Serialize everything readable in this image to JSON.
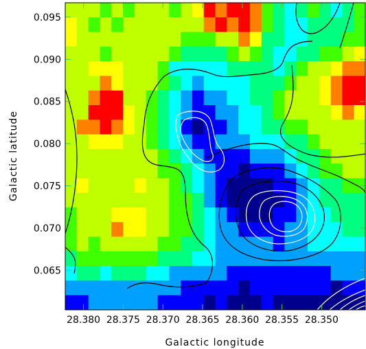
{
  "chart_data": {
    "type": "heatmap",
    "title": "",
    "xlabel": "Galactic longitude",
    "ylabel": "Galactic latitude",
    "x_reversed": true,
    "xlim": [
      28.3823,
      28.3445
    ],
    "ylim": [
      0.0603,
      0.0967
    ],
    "xticks": [
      "28.380",
      "28.375",
      "28.370",
      "28.365",
      "28.360",
      "28.355",
      "28.350"
    ],
    "yticks": [
      "0.095",
      "0.090",
      "0.085",
      "0.080",
      "0.075",
      "0.070",
      "0.065"
    ],
    "grid": false,
    "legend": "none",
    "colormap": [
      "#00008c",
      "#0000ff",
      "#00a0ff",
      "#00ffff",
      "#00ff80",
      "#40ff00",
      "#c0ff00",
      "#ffff00",
      "#ff8000",
      "#ff0000"
    ],
    "contour_levels": [
      "outer",
      "mid",
      "inner-1",
      "inner-2",
      "inner-3",
      "peak"
    ],
    "intensity_grid": [
      [
        6,
        6,
        6,
        5,
        6,
        5,
        6,
        6,
        6,
        5,
        6,
        7,
        9,
        8,
        9,
        9,
        8,
        5,
        4,
        3,
        4,
        5,
        4,
        3,
        4,
        5
      ],
      [
        7,
        6,
        5,
        6,
        5,
        6,
        6,
        6,
        6,
        6,
        6,
        6,
        8,
        9,
        8,
        9,
        8,
        5,
        4,
        3,
        3,
        4,
        4,
        4,
        4,
        5
      ],
      [
        7,
        6,
        6,
        6,
        6,
        6,
        6,
        6,
        6,
        6,
        5,
        5,
        5,
        6,
        6,
        8,
        7,
        4,
        4,
        3,
        3,
        4,
        4,
        4,
        5,
        5
      ],
      [
        6,
        6,
        6,
        5,
        6,
        6,
        6,
        6,
        6,
        5,
        4,
        4,
        4,
        4,
        5,
        6,
        5,
        4,
        3,
        3,
        4,
        4,
        5,
        5,
        6,
        7
      ],
      [
        6,
        6,
        7,
        7,
        7,
        6,
        6,
        6,
        5,
        3,
        3,
        3,
        3,
        3,
        4,
        4,
        4,
        4,
        3,
        4,
        5,
        6,
        6,
        7,
        8,
        8
      ],
      [
        6,
        6,
        6,
        8,
        7,
        6,
        6,
        6,
        5,
        4,
        3,
        2,
        3,
        3,
        3,
        3,
        4,
        4,
        4,
        5,
        6,
        6,
        7,
        8,
        9,
        9
      ],
      [
        6,
        6,
        8,
        9,
        9,
        6,
        6,
        5,
        4,
        3,
        2,
        1,
        2,
        2,
        3,
        3,
        4,
        4,
        5,
        6,
        6,
        6,
        7,
        8,
        9,
        9
      ],
      [
        6,
        6,
        9,
        9,
        9,
        7,
        6,
        5,
        4,
        3,
        2,
        1,
        1,
        2,
        2,
        3,
        3,
        4,
        5,
        6,
        6,
        6,
        6,
        7,
        8,
        7
      ],
      [
        6,
        8,
        8,
        9,
        8,
        7,
        6,
        5,
        4,
        3,
        1,
        0,
        1,
        1,
        2,
        3,
        3,
        4,
        4,
        5,
        5,
        6,
        6,
        6,
        6,
        6
      ],
      [
        6,
        6,
        7,
        7,
        7,
        6,
        6,
        5,
        4,
        3,
        2,
        1,
        1,
        2,
        2,
        2,
        3,
        3,
        3,
        4,
        4,
        5,
        6,
        6,
        6,
        6
      ],
      [
        6,
        6,
        6,
        6,
        6,
        6,
        6,
        6,
        5,
        4,
        3,
        2,
        1,
        1,
        1,
        1,
        2,
        2,
        2,
        3,
        4,
        4,
        5,
        6,
        6,
        6
      ],
      [
        6,
        6,
        6,
        6,
        6,
        6,
        6,
        6,
        5,
        5,
        4,
        3,
        2,
        1,
        1,
        0,
        1,
        1,
        1,
        2,
        3,
        4,
        5,
        5,
        6,
        6
      ],
      [
        6,
        7,
        6,
        6,
        6,
        6,
        7,
        6,
        6,
        5,
        4,
        3,
        2,
        1,
        0,
        0,
        0,
        0,
        1,
        1,
        2,
        3,
        4,
        4,
        5,
        5
      ],
      [
        6,
        6,
        6,
        6,
        6,
        6,
        6,
        6,
        6,
        5,
        5,
        4,
        2,
        1,
        0,
        0,
        0,
        0,
        0,
        1,
        2,
        3,
        4,
        4,
        4,
        4
      ],
      [
        5,
        6,
        6,
        6,
        7,
        7,
        7,
        6,
        6,
        5,
        5,
        4,
        3,
        2,
        1,
        0,
        0,
        0,
        1,
        1,
        2,
        3,
        3,
        4,
        4,
        4
      ],
      [
        5,
        6,
        6,
        6,
        8,
        7,
        7,
        6,
        6,
        5,
        5,
        4,
        3,
        2,
        2,
        1,
        1,
        1,
        1,
        2,
        2,
        3,
        3,
        3,
        4,
        4
      ],
      [
        5,
        6,
        5,
        6,
        6,
        6,
        6,
        6,
        5,
        5,
        4,
        4,
        3,
        2,
        2,
        2,
        2,
        2,
        1,
        2,
        2,
        3,
        3,
        3,
        3,
        3
      ],
      [
        4,
        5,
        5,
        5,
        5,
        5,
        5,
        5,
        4,
        4,
        4,
        3,
        3,
        2,
        2,
        2,
        2,
        2,
        2,
        2,
        2,
        2,
        2,
        2,
        2,
        2
      ],
      [
        3,
        4,
        4,
        3,
        4,
        4,
        4,
        3,
        3,
        2,
        2,
        2,
        2,
        2,
        1,
        1,
        1,
        1,
        1,
        1,
        1,
        1,
        1,
        2,
        2,
        2
      ],
      [
        2,
        2,
        2,
        2,
        2,
        2,
        2,
        2,
        2,
        2,
        1,
        1,
        1,
        1,
        1,
        0,
        1,
        1,
        1,
        1,
        1,
        1,
        1,
        0,
        1,
        1
      ],
      [
        1,
        1,
        2,
        2,
        2,
        2,
        2,
        2,
        1,
        1,
        1,
        1,
        0,
        1,
        0,
        0,
        0,
        1,
        0,
        0,
        0,
        0,
        0,
        0,
        0,
        0
      ]
    ]
  }
}
